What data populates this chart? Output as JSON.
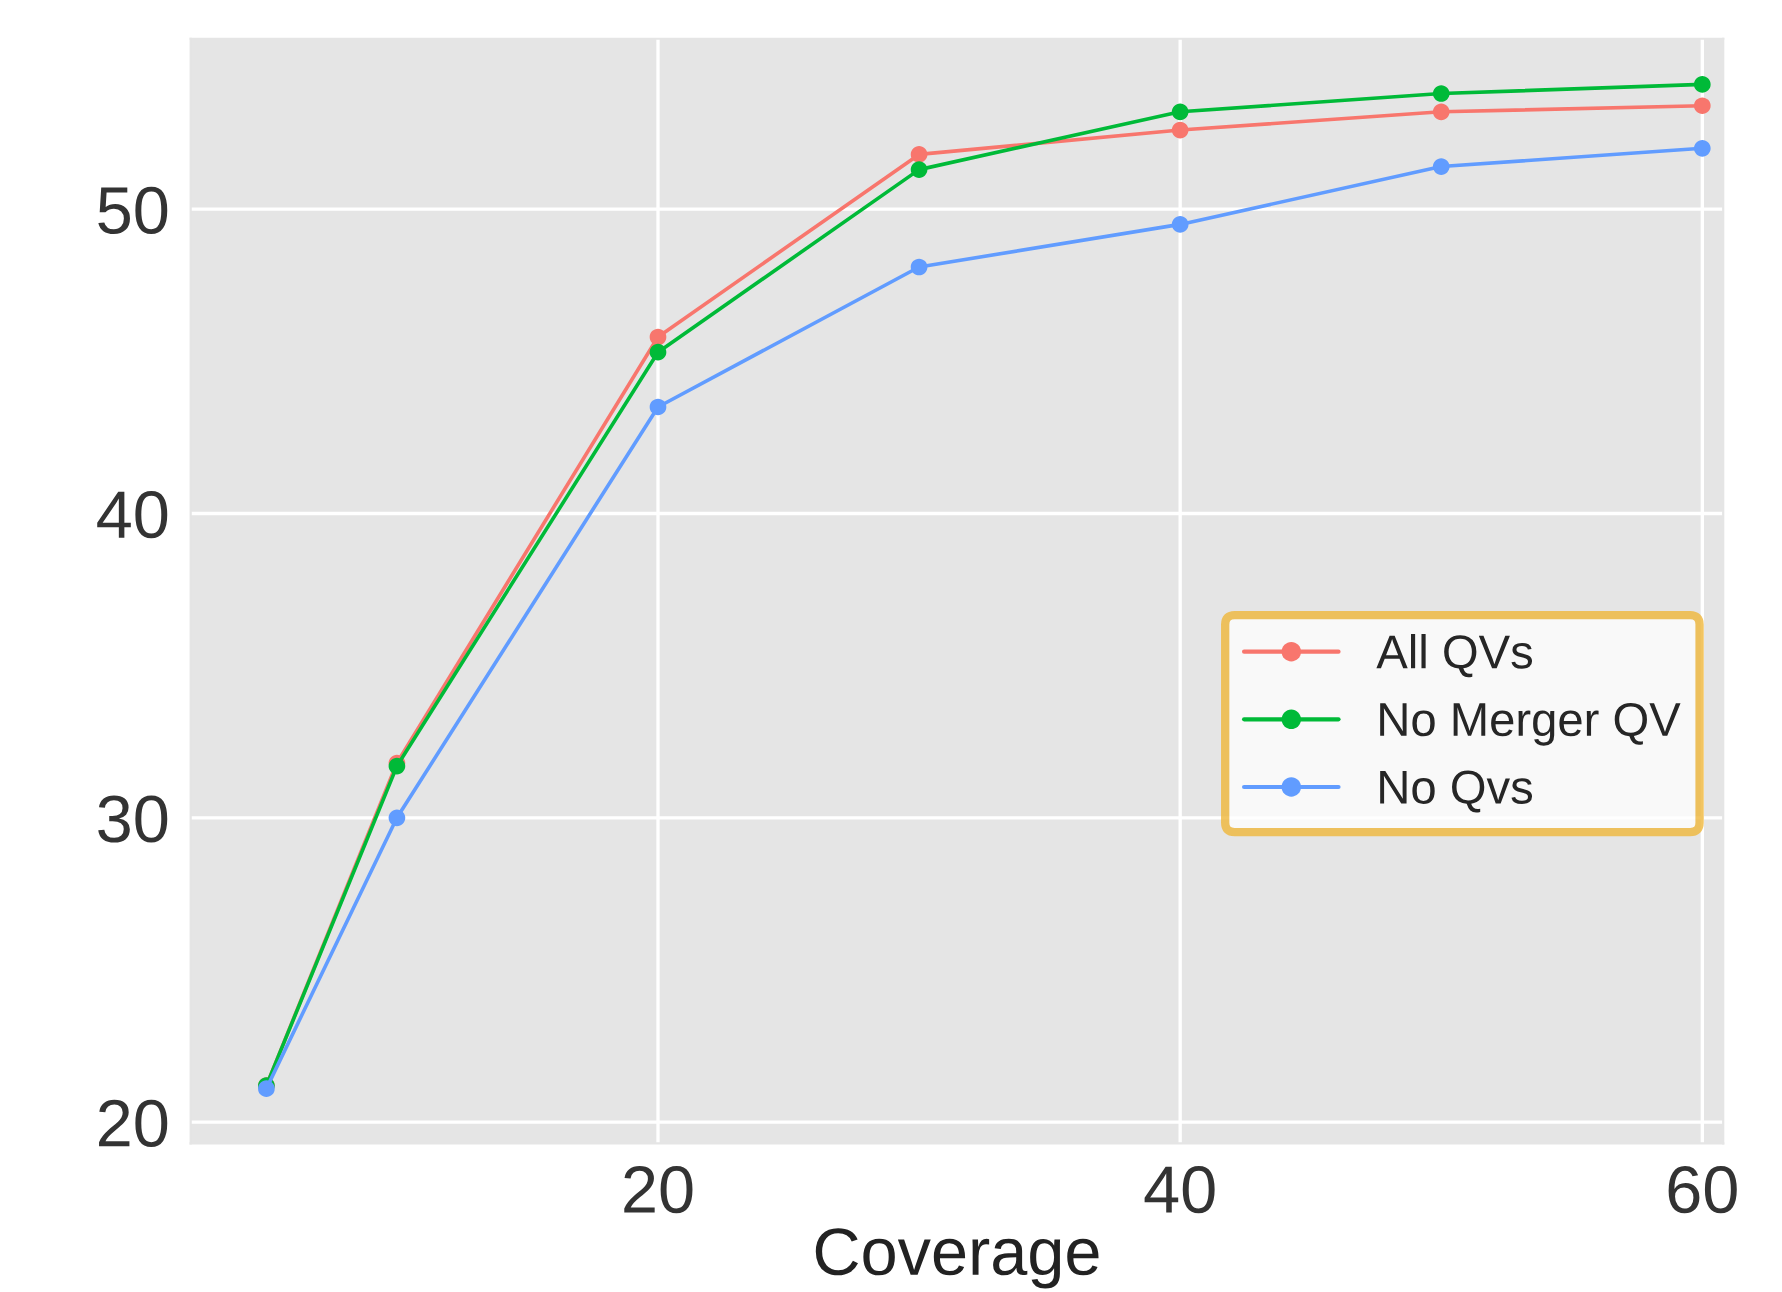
{
  "chart_data": {
    "type": "line",
    "xlabel": "Coverage",
    "x": [
      5,
      10,
      20,
      30,
      40,
      50,
      60
    ],
    "series": [
      {
        "name": "All QVs",
        "color": "#f8766d",
        "values": [
          21.2,
          31.8,
          45.8,
          51.8,
          52.6,
          53.2,
          53.4
        ]
      },
      {
        "name": "No Merger QV",
        "color": "#00ba38",
        "values": [
          21.2,
          31.7,
          45.3,
          51.3,
          53.2,
          53.8,
          54.1
        ]
      },
      {
        "name": "No Qvs",
        "color": "#619cff",
        "values": [
          21.1,
          30.0,
          43.5,
          48.1,
          49.5,
          51.4,
          52.0
        ]
      }
    ],
    "xlim": [
      2.1,
      60.8
    ],
    "ylim": [
      19.3,
      55.6
    ],
    "xticks": [
      20,
      40,
      60
    ],
    "yticks": [
      20,
      30,
      40,
      50
    ],
    "grid": true,
    "legend": "right",
    "marker": "circle",
    "line_style": "solid"
  }
}
